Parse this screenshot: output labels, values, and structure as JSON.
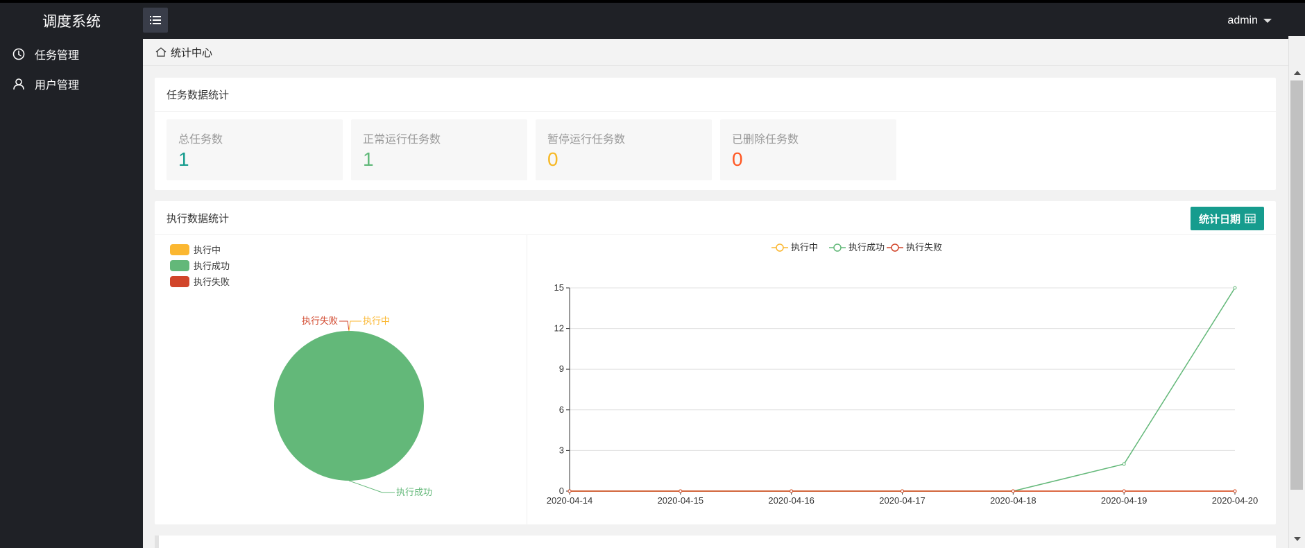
{
  "app": {
    "title": "调度系统",
    "user": "admin"
  },
  "sidebar": {
    "items": [
      {
        "label": "任务管理",
        "icon": "clock-icon"
      },
      {
        "label": "用户管理",
        "icon": "user-icon"
      }
    ]
  },
  "breadcrumb": {
    "label": "统计中心",
    "icon": "home-icon"
  },
  "task_stats": {
    "title": "任务数据统计",
    "cards": [
      {
        "label": "总任务数",
        "value": "1",
        "color": "#169c8e"
      },
      {
        "label": "正常运行任务数",
        "value": "1",
        "color": "#5fb878"
      },
      {
        "label": "暂停运行任务数",
        "value": "0",
        "color": "#f7b824"
      },
      {
        "label": "已删除任务数",
        "value": "0",
        "color": "#ff5722"
      }
    ]
  },
  "exec_stats": {
    "title": "执行数据统计",
    "date_button": "统计日期",
    "legend": [
      {
        "label": "执行中",
        "color": "#fbb731"
      },
      {
        "label": "执行成功",
        "color": "#63b879"
      },
      {
        "label": "执行失败",
        "color": "#d1452a"
      }
    ]
  },
  "chart_data": [
    {
      "type": "pie",
      "labels": [
        "执行中",
        "执行成功",
        "执行失败"
      ],
      "values": [
        0,
        1,
        0
      ],
      "colors": [
        "#fbb731",
        "#63b879",
        "#d1452a"
      ],
      "legend_position": "top-left"
    },
    {
      "type": "line",
      "x": [
        "2020-04-14",
        "2020-04-15",
        "2020-04-16",
        "2020-04-17",
        "2020-04-18",
        "2020-04-19",
        "2020-04-20"
      ],
      "series": [
        {
          "name": "执行中",
          "color": "#fbb731",
          "values": [
            0,
            0,
            0,
            0,
            0,
            0,
            0
          ]
        },
        {
          "name": "执行成功",
          "color": "#63b879",
          "values": [
            0,
            0,
            0,
            0,
            0,
            2,
            15
          ]
        },
        {
          "name": "执行失败",
          "color": "#d1452a",
          "values": [
            0,
            0,
            0,
            0,
            0,
            0,
            0
          ]
        }
      ],
      "ylim": [
        0,
        15
      ],
      "yticks": [
        0,
        3,
        6,
        9,
        12,
        15
      ],
      "grid": true,
      "legend_position": "top-center"
    }
  ]
}
